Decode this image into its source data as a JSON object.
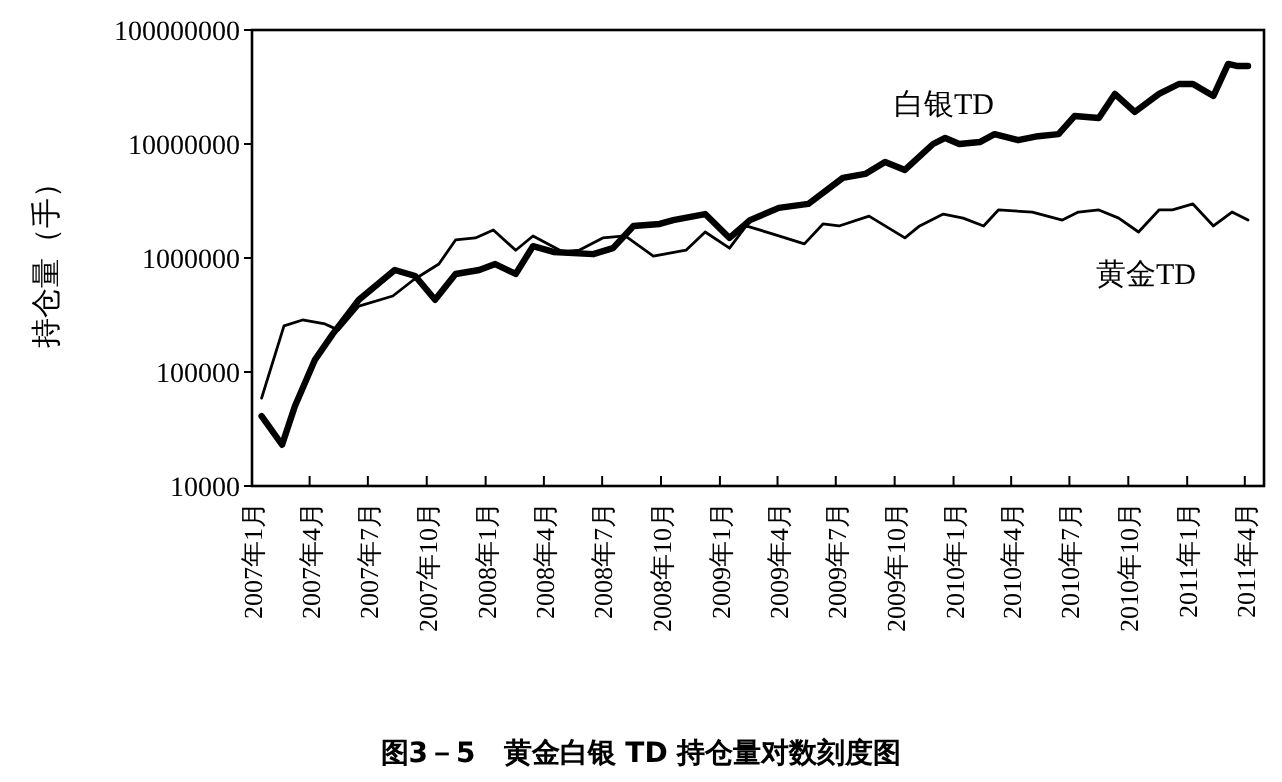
{
  "chart_data": {
    "type": "line",
    "title": "图3－5　黄金白银 TD 持仓量对数刻度图",
    "ylabel": "持仓量（手）",
    "log": true,
    "grid": false,
    "line_style": "solid",
    "xlim": [
      "2007-01-01",
      "2011-05-01"
    ],
    "ylim": [
      10000,
      100000000
    ],
    "yticks": [
      10000,
      100000,
      1000000,
      10000000,
      100000000
    ],
    "xticks": [
      {
        "value": "2007-01",
        "label": "2007年1月"
      },
      {
        "value": "2007-04",
        "label": "2007年4月"
      },
      {
        "value": "2007-07",
        "label": "2007年7月"
      },
      {
        "value": "2007-10",
        "label": "2007年10月"
      },
      {
        "value": "2008-01",
        "label": "2008年1月"
      },
      {
        "value": "2008-04",
        "label": "2008年4月"
      },
      {
        "value": "2008-07",
        "label": "2008年7月"
      },
      {
        "value": "2008-10",
        "label": "2008年10月"
      },
      {
        "value": "2009-01",
        "label": "2009年1月"
      },
      {
        "value": "2009-04",
        "label": "2009年4月"
      },
      {
        "value": "2009-07",
        "label": "2009年7月"
      },
      {
        "value": "2009-10",
        "label": "2009年10月"
      },
      {
        "value": "2010-01",
        "label": "2010年1月"
      },
      {
        "value": "2010-04",
        "label": "2010年4月"
      },
      {
        "value": "2010-07",
        "label": "2010年7月"
      },
      {
        "value": "2010-10",
        "label": "2010年10月"
      },
      {
        "value": "2011-01",
        "label": "2011年1月"
      },
      {
        "value": "2011-04",
        "label": "2011年4月"
      }
    ],
    "series": [
      {
        "name": "白银TD",
        "color": "#000000",
        "x": [
          "2007-01-16",
          "2007-02-17",
          "2007-03-09",
          "2007-04-09",
          "2007-05-07",
          "2007-06-17",
          "2007-08-12",
          "2007-09-13",
          "2007-10-14",
          "2007-11-15",
          "2007-12-22",
          "2008-01-16",
          "2008-02-17",
          "2008-03-15",
          "2008-04-16",
          "2008-06-17",
          "2008-07-18",
          "2008-08-19",
          "2008-09-29",
          "2008-10-20",
          "2008-12-09",
          "2009-01-16",
          "2009-02-17",
          "2009-04-03",
          "2009-05-19",
          "2009-07-12",
          "2009-08-16",
          "2009-09-16",
          "2009-10-17",
          "2009-11-30",
          "2009-12-19",
          "2010-01-10",
          "2010-02-11",
          "2010-03-06",
          "2010-04-12",
          "2010-05-13",
          "2010-06-14",
          "2010-07-09",
          "2010-08-16",
          "2010-09-10",
          "2010-10-11",
          "2010-11-18",
          "2010-12-19",
          "2011-01-10",
          "2011-02-11",
          "2011-03-06",
          "2011-03-21",
          "2011-04-06"
        ],
        "values": [
          41000,
          23000,
          50000,
          127000,
          215000,
          430000,
          785000,
          695000,
          430000,
          724000,
          785000,
          885000,
          724000,
          1270000,
          1130000,
          1080000,
          1220000,
          1910000,
          1990000,
          2150000,
          2430000,
          1500000,
          2150000,
          2750000,
          2980000,
          5040000,
          5460000,
          6950000,
          5920000,
          10000000,
          11300000,
          10000000,
          10400000,
          12200000,
          10800000,
          11700000,
          12200000,
          17600000,
          16900000,
          27500000,
          19100000,
          27500000,
          33600000,
          33600000,
          26400000,
          50400000,
          48300000,
          48300000
        ]
      },
      {
        "name": "黄金TD",
        "color": "#000000",
        "x": [
          "2007-01-16",
          "2007-02-20",
          "2007-03-21",
          "2007-04-25",
          "2007-05-16",
          "2007-06-17",
          "2007-08-09",
          "2007-09-10",
          "2007-10-20",
          "2007-11-15",
          "2007-12-16",
          "2008-01-13",
          "2008-02-17",
          "2008-03-15",
          "2008-05-01",
          "2008-05-26",
          "2008-07-02",
          "2008-08-06",
          "2008-09-19",
          "2008-11-09",
          "2008-12-09",
          "2009-01-16",
          "2009-02-11",
          "2009-03-24",
          "2009-05-13",
          "2009-06-11",
          "2009-07-06",
          "2009-08-22",
          "2009-10-17",
          "2009-11-09",
          "2009-12-16",
          "2010-01-16",
          "2010-02-17",
          "2010-03-12",
          "2010-05-04",
          "2010-06-20",
          "2010-07-15",
          "2010-08-16",
          "2010-09-16",
          "2010-10-17",
          "2010-11-18",
          "2010-12-09",
          "2011-01-10",
          "2011-02-11",
          "2011-03-12",
          "2011-04-06"
        ],
        "values": [
          59000,
          254000,
          286000,
          264000,
          233000,
          379000,
          464000,
          641000,
          885000,
          1440000,
          1500000,
          1760000,
          1170000,
          1560000,
          1130000,
          1170000,
          1500000,
          1560000,
          1040000,
          1170000,
          1690000,
          1220000,
          1910000,
          1630000,
          1330000,
          1990000,
          1910000,
          2330000,
          1500000,
          1910000,
          2430000,
          2240000,
          1910000,
          2640000,
          2530000,
          2150000,
          2530000,
          2640000,
          2240000,
          1690000,
          2640000,
          2640000,
          2980000,
          1910000,
          2530000,
          2150000
        ]
      }
    ]
  }
}
